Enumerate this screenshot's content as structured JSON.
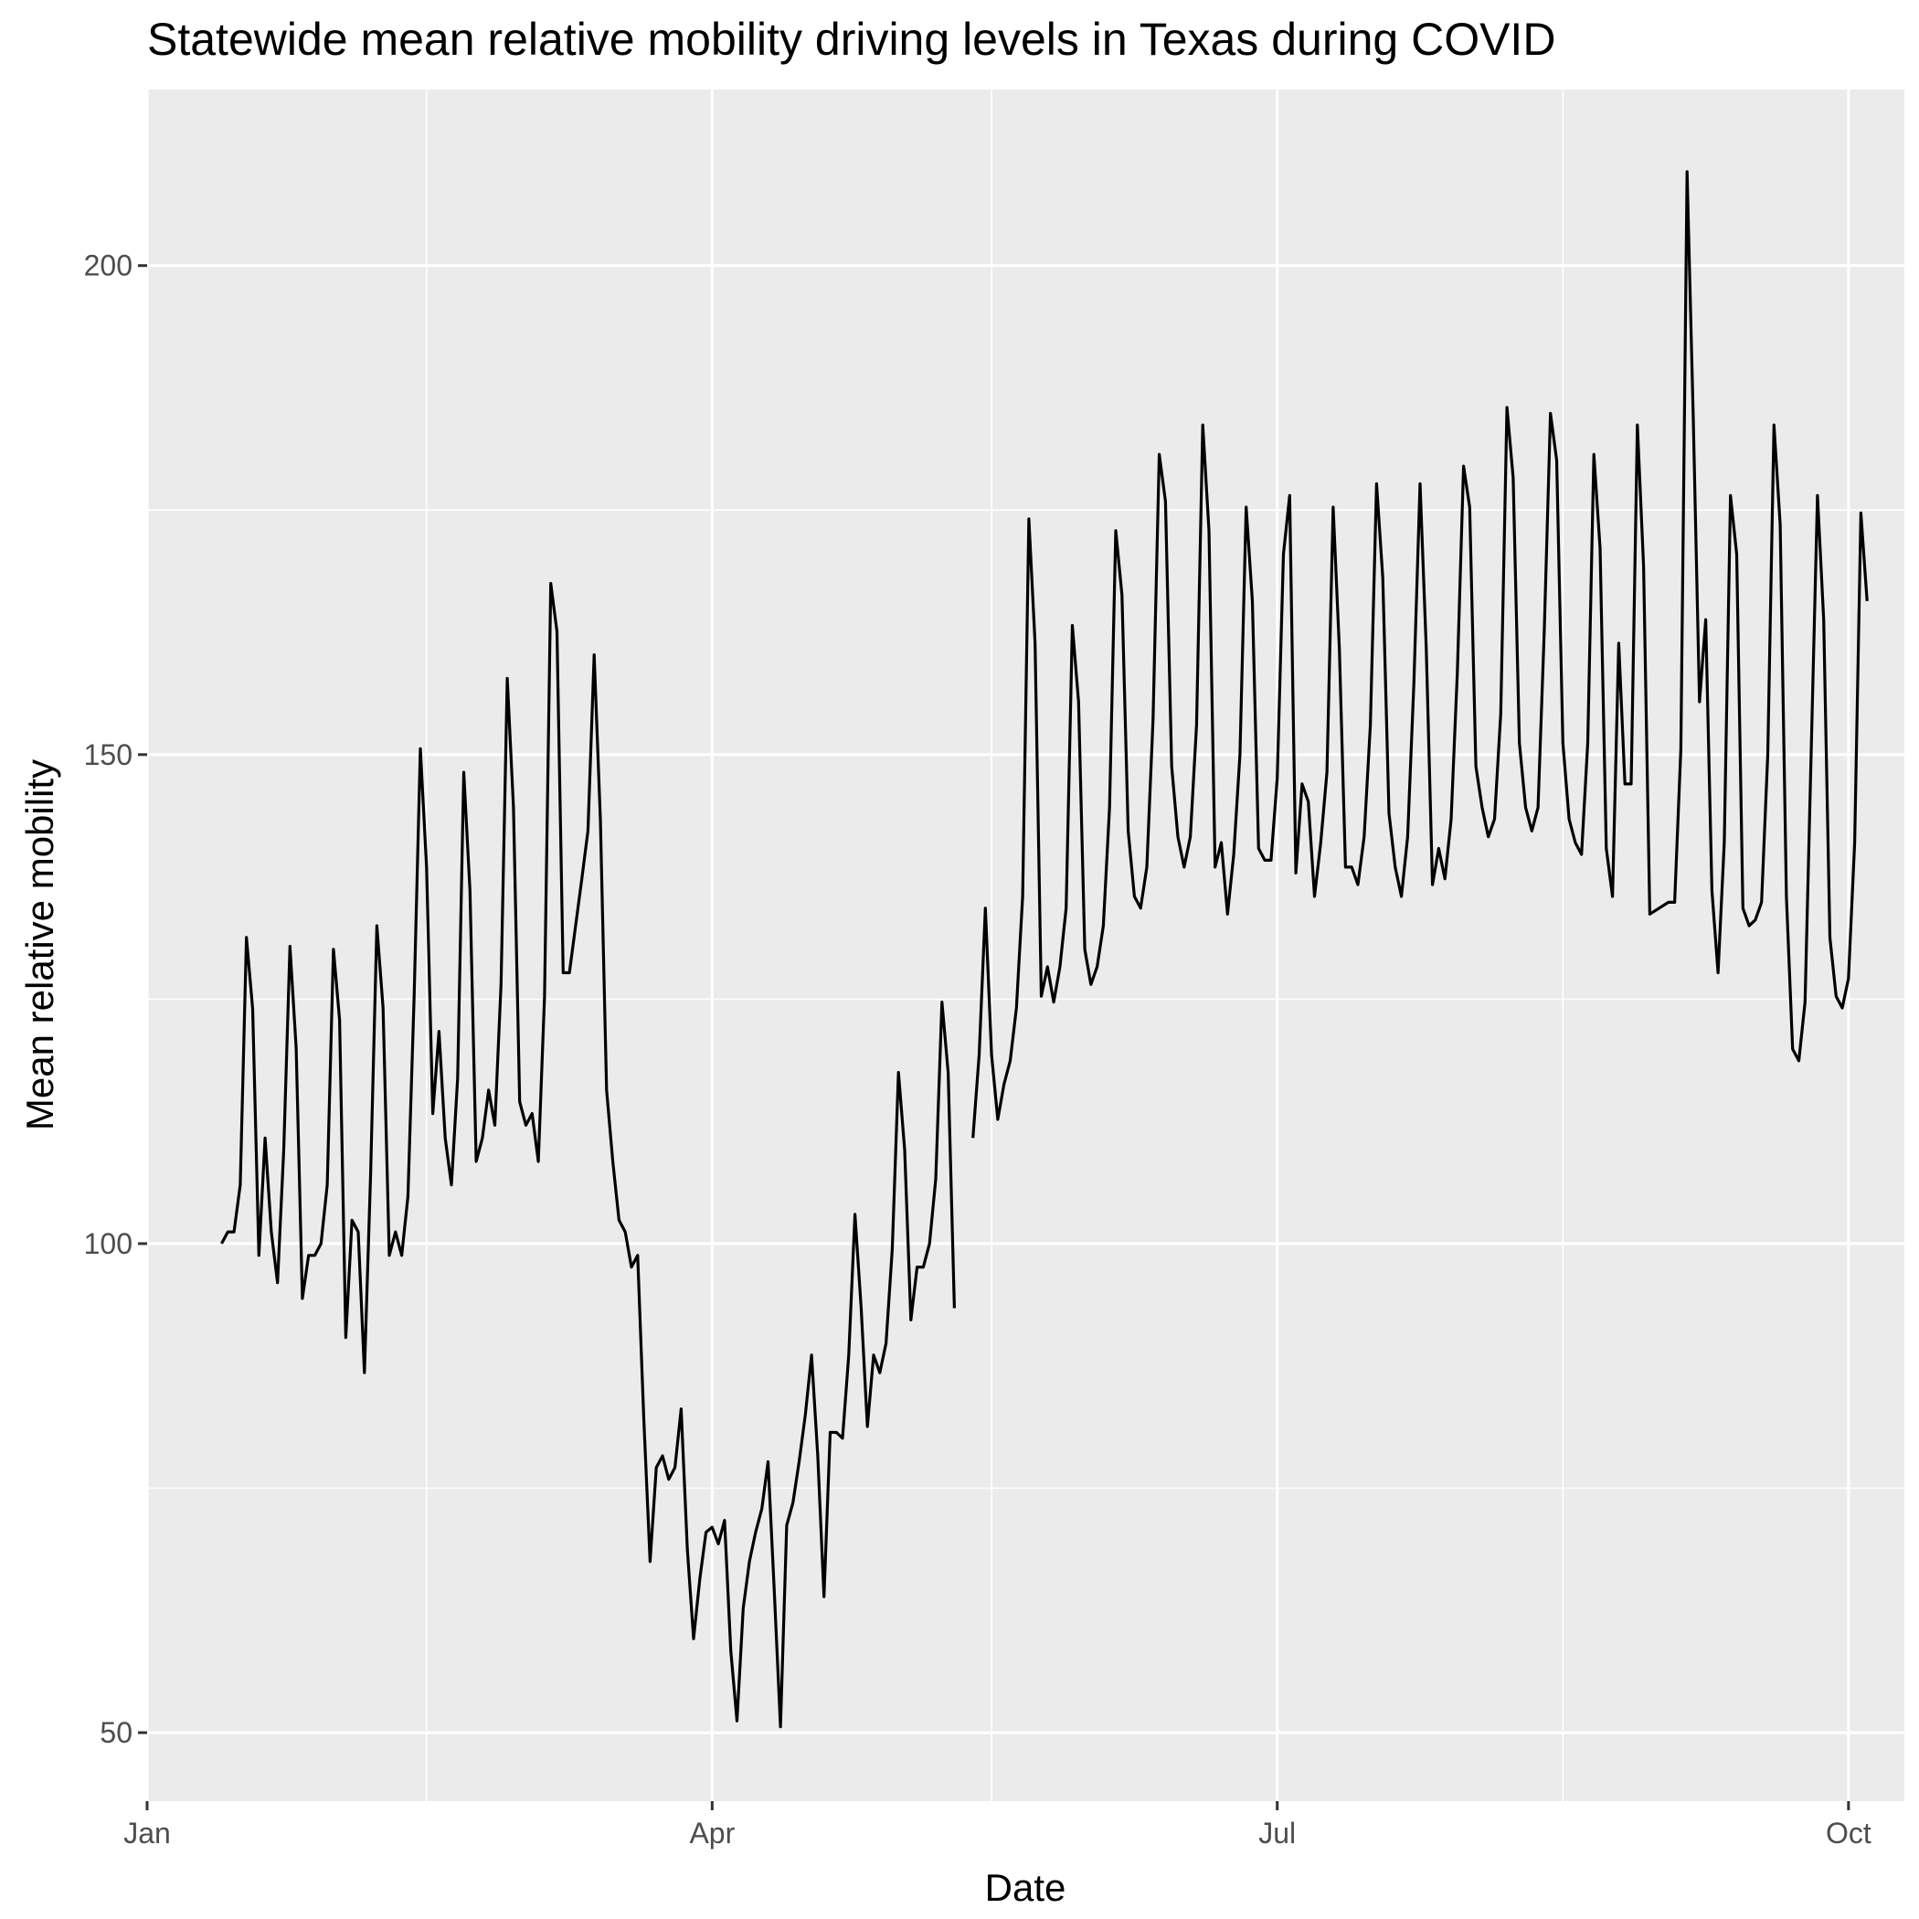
{
  "chart_data": {
    "type": "line",
    "title": "Statewide mean relative mobility driving levels in Texas during COVID",
    "xlabel": "Date",
    "ylabel": "Mean relative mobility",
    "x_axis": {
      "type": "date",
      "range": [
        "2020-01-01",
        "2020-10-10"
      ],
      "ticks": [
        {
          "value": "2020-01-01",
          "label": "Jan"
        },
        {
          "value": "2020-04-01",
          "label": "Apr"
        },
        {
          "value": "2020-07-01",
          "label": "Jul"
        },
        {
          "value": "2020-10-01",
          "label": "Oct"
        }
      ],
      "minor_ticks": [
        "2020-02-15",
        "2020-05-16",
        "2020-08-16"
      ]
    },
    "y_axis": {
      "range": [
        43,
        218
      ],
      "ticks": [
        50,
        100,
        150,
        200
      ],
      "minor_ticks": [
        75,
        125,
        175
      ]
    },
    "grid": true,
    "background": "#ebebeb",
    "line_color": "#000000",
    "series": [
      {
        "values": [
          [
            "2020-01-13",
            100
          ],
          [
            "2020-01-14",
            101.2
          ],
          [
            "2020-01-15",
            101.2
          ],
          [
            "2020-01-16",
            106
          ],
          [
            "2020-01-17",
            131.3
          ],
          [
            "2020-01-18",
            124
          ],
          [
            "2020-01-19",
            98.8
          ],
          [
            "2020-01-20",
            110.8
          ],
          [
            "2020-01-21",
            101.2
          ],
          [
            "2020-01-22",
            96
          ],
          [
            "2020-01-23",
            109.6
          ],
          [
            "2020-01-24",
            130.4
          ],
          [
            "2020-01-25",
            120
          ],
          [
            "2020-01-26",
            94.4
          ],
          [
            "2020-01-27",
            98.8
          ],
          [
            "2020-01-28",
            98.8
          ],
          [
            "2020-01-29",
            100
          ],
          [
            "2020-01-30",
            106
          ],
          [
            "2020-01-31",
            130.1
          ],
          [
            "2020-02-01",
            122.9
          ],
          [
            "2020-02-02",
            90.4
          ],
          [
            "2020-02-03",
            102.4
          ],
          [
            "2020-02-04",
            101.2
          ],
          [
            "2020-02-05",
            86.8
          ],
          [
            "2020-02-06",
            107.2
          ],
          [
            "2020-02-07",
            132.5
          ],
          [
            "2020-02-08",
            124.1
          ],
          [
            "2020-02-09",
            98.8
          ],
          [
            "2020-02-10",
            101.2
          ],
          [
            "2020-02-11",
            98.8
          ],
          [
            "2020-02-12",
            104.8
          ],
          [
            "2020-02-13",
            125.3
          ],
          [
            "2020-02-14",
            150.6
          ],
          [
            "2020-02-15",
            138.5
          ],
          [
            "2020-02-16",
            113.3
          ],
          [
            "2020-02-17",
            121.7
          ],
          [
            "2020-02-18",
            110.8
          ],
          [
            "2020-02-19",
            106
          ],
          [
            "2020-02-20",
            116.9
          ],
          [
            "2020-02-21",
            148.2
          ],
          [
            "2020-02-22",
            136.1
          ],
          [
            "2020-02-23",
            108.4
          ],
          [
            "2020-02-24",
            110.8
          ],
          [
            "2020-02-25",
            115.7
          ],
          [
            "2020-02-26",
            112.1
          ],
          [
            "2020-02-27",
            126.5
          ],
          [
            "2020-02-28",
            157.8
          ],
          [
            "2020-02-29",
            144.6
          ],
          [
            "2020-03-01",
            114.5
          ],
          [
            "2020-03-02",
            112.1
          ],
          [
            "2020-03-03",
            113.3
          ],
          [
            "2020-03-04",
            108.4
          ],
          [
            "2020-03-05",
            125.3
          ],
          [
            "2020-03-06",
            167.5
          ],
          [
            "2020-03-07",
            162.6
          ],
          [
            "2020-03-08",
            127.7
          ],
          [
            "2020-03-09",
            127.7
          ],
          [
            "2020-03-10",
            132.5
          ],
          [
            "2020-03-11",
            137.3
          ],
          [
            "2020-03-12",
            142.2
          ],
          [
            "2020-03-13",
            160.2
          ],
          [
            "2020-03-14",
            143.4
          ],
          [
            "2020-03-15",
            115.7
          ],
          [
            "2020-03-16",
            108.4
          ],
          [
            "2020-03-17",
            102.4
          ],
          [
            "2020-03-18",
            101.2
          ],
          [
            "2020-03-19",
            97.6
          ],
          [
            "2020-03-20",
            98.8
          ],
          [
            "2020-03-21",
            81.9
          ],
          [
            "2020-03-22",
            67.5
          ],
          [
            "2020-03-23",
            77.1
          ],
          [
            "2020-03-24",
            78.3
          ],
          [
            "2020-03-25",
            75.9
          ],
          [
            "2020-03-26",
            77.1
          ],
          [
            "2020-03-27",
            83.1
          ],
          [
            "2020-03-28",
            68.7
          ],
          [
            "2020-03-29",
            59.6
          ],
          [
            "2020-03-30",
            65.7
          ],
          [
            "2020-03-31",
            70.5
          ],
          [
            "2020-04-01",
            71
          ],
          [
            "2020-04-02",
            69.3
          ],
          [
            "2020-04-03",
            71.7
          ],
          [
            "2020-04-04",
            58.4
          ],
          [
            "2020-04-05",
            51.2
          ],
          [
            "2020-04-06",
            62.7
          ],
          [
            "2020-04-07",
            67.5
          ],
          [
            "2020-04-08",
            70.5
          ],
          [
            "2020-04-09",
            72.9
          ],
          [
            "2020-04-10",
            77.7
          ],
          [
            "2020-04-11",
            64.5
          ],
          [
            "2020-04-12",
            50.6
          ],
          [
            "2020-04-13",
            71.2
          ],
          [
            "2020-04-14",
            73.5
          ],
          [
            "2020-04-15",
            77.7
          ],
          [
            "2020-04-16",
            82.5
          ],
          [
            "2020-04-17",
            88.6
          ],
          [
            "2020-04-18",
            78.3
          ],
          [
            "2020-04-19",
            63.9
          ],
          [
            "2020-04-20",
            80.7
          ],
          [
            "2020-04-21",
            80.7
          ],
          [
            "2020-04-22",
            80.1
          ],
          [
            "2020-04-23",
            88.6
          ],
          [
            "2020-04-24",
            103
          ],
          [
            "2020-04-25",
            93.4
          ],
          [
            "2020-04-26",
            81.3
          ],
          [
            "2020-04-27",
            88.6
          ],
          [
            "2020-04-28",
            86.8
          ],
          [
            "2020-04-29",
            89.8
          ],
          [
            "2020-04-30",
            99.4
          ],
          [
            "2020-05-01",
            117.5
          ],
          [
            "2020-05-02",
            109.6
          ],
          [
            "2020-05-03",
            92.2
          ],
          [
            "2020-05-04",
            97.6
          ],
          [
            "2020-05-05",
            97.6
          ],
          [
            "2020-05-06",
            100
          ],
          [
            "2020-05-07",
            106.6
          ],
          [
            "2020-05-08",
            124.7
          ],
          [
            "2020-05-09",
            117.5
          ],
          [
            "2020-05-10",
            93.4
          ],
          null,
          [
            "2020-05-13",
            110.8
          ],
          [
            "2020-05-14",
            119.3
          ],
          [
            "2020-05-15",
            134.3
          ],
          [
            "2020-05-16",
            119.3
          ],
          [
            "2020-05-17",
            112.7
          ],
          [
            "2020-05-18",
            116.3
          ],
          [
            "2020-05-19",
            118.7
          ],
          [
            "2020-05-20",
            124.1
          ],
          [
            "2020-05-21",
            135.5
          ],
          [
            "2020-05-22",
            174.1
          ],
          [
            "2020-05-23",
            161.4
          ],
          [
            "2020-05-24",
            125.3
          ],
          [
            "2020-05-25",
            128.3
          ],
          [
            "2020-05-26",
            124.7
          ],
          [
            "2020-05-27",
            128.3
          ],
          [
            "2020-05-28",
            134.3
          ],
          [
            "2020-05-29",
            163.2
          ],
          [
            "2020-05-30",
            155.4
          ],
          [
            "2020-05-31",
            130.1
          ],
          [
            "2020-06-01",
            126.5
          ],
          [
            "2020-06-02",
            128.3
          ],
          [
            "2020-06-03",
            132.5
          ],
          [
            "2020-06-04",
            144.6
          ],
          [
            "2020-06-05",
            172.9
          ],
          [
            "2020-06-06",
            166.3
          ],
          [
            "2020-06-07",
            142.2
          ],
          [
            "2020-06-08",
            135.5
          ],
          [
            "2020-06-09",
            134.3
          ],
          [
            "2020-06-10",
            138.5
          ],
          [
            "2020-06-11",
            153.6
          ],
          [
            "2020-06-12",
            180.7
          ],
          [
            "2020-06-13",
            175.9
          ],
          [
            "2020-06-14",
            148.8
          ],
          [
            "2020-06-15",
            141.6
          ],
          [
            "2020-06-16",
            138.5
          ],
          [
            "2020-06-17",
            141.6
          ],
          [
            "2020-06-18",
            153
          ],
          [
            "2020-06-19",
            183.7
          ],
          [
            "2020-06-20",
            172.9
          ],
          [
            "2020-06-21",
            138.5
          ],
          [
            "2020-06-22",
            141
          ],
          [
            "2020-06-23",
            133.7
          ],
          [
            "2020-06-24",
            139.8
          ],
          [
            "2020-06-25",
            150
          ],
          [
            "2020-06-26",
            175.3
          ],
          [
            "2020-06-27",
            165.7
          ],
          [
            "2020-06-28",
            140.4
          ],
          [
            "2020-06-29",
            139.2
          ],
          [
            "2020-06-30",
            139.2
          ],
          [
            "2020-07-01",
            147.6
          ],
          [
            "2020-07-02",
            170.5
          ],
          [
            "2020-07-03",
            176.5
          ],
          [
            "2020-07-04",
            137.9
          ],
          [
            "2020-07-05",
            147
          ],
          [
            "2020-07-06",
            145.2
          ],
          [
            "2020-07-07",
            135.5
          ],
          [
            "2020-07-08",
            141
          ],
          [
            "2020-07-09",
            148.2
          ],
          [
            "2020-07-10",
            175.3
          ],
          [
            "2020-07-11",
            160.8
          ],
          [
            "2020-07-12",
            138.5
          ],
          [
            "2020-07-13",
            138.5
          ],
          [
            "2020-07-14",
            136.7
          ],
          [
            "2020-07-15",
            141.6
          ],
          [
            "2020-07-16",
            153
          ],
          [
            "2020-07-17",
            177.7
          ],
          [
            "2020-07-18",
            168.1
          ],
          [
            "2020-07-19",
            144
          ],
          [
            "2020-07-20",
            138.5
          ],
          [
            "2020-07-21",
            135.5
          ],
          [
            "2020-07-22",
            141.6
          ],
          [
            "2020-07-23",
            157.2
          ],
          [
            "2020-07-24",
            177.7
          ],
          [
            "2020-07-25",
            160.8
          ],
          [
            "2020-07-26",
            136.7
          ],
          [
            "2020-07-27",
            140.4
          ],
          [
            "2020-07-28",
            137.3
          ],
          [
            "2020-07-29",
            143.4
          ],
          [
            "2020-07-30",
            158.4
          ],
          [
            "2020-07-31",
            179.5
          ],
          [
            "2020-08-01",
            175.3
          ],
          [
            "2020-08-02",
            148.8
          ],
          [
            "2020-08-03",
            144.6
          ],
          [
            "2020-08-04",
            141.6
          ],
          [
            "2020-08-05",
            143.4
          ],
          [
            "2020-08-06",
            154.2
          ],
          [
            "2020-08-07",
            185.5
          ],
          [
            "2020-08-08",
            178.3
          ],
          [
            "2020-08-09",
            151.2
          ],
          [
            "2020-08-10",
            144.6
          ],
          [
            "2020-08-11",
            142.2
          ],
          [
            "2020-08-12",
            144.6
          ],
          [
            "2020-08-13",
            162.6
          ],
          [
            "2020-08-14",
            184.9
          ],
          [
            "2020-08-15",
            180.1
          ],
          [
            "2020-08-16",
            151.2
          ],
          [
            "2020-08-17",
            143.4
          ],
          [
            "2020-08-18",
            141
          ],
          [
            "2020-08-19",
            139.8
          ],
          [
            "2020-08-20",
            151.2
          ],
          [
            "2020-08-21",
            180.7
          ],
          [
            "2020-08-22",
            171.1
          ],
          [
            "2020-08-23",
            140.4
          ],
          [
            "2020-08-24",
            135.5
          ],
          [
            "2020-08-25",
            161.4
          ],
          [
            "2020-08-26",
            147
          ],
          [
            "2020-08-27",
            147
          ],
          [
            "2020-08-28",
            183.7
          ],
          [
            "2020-08-29",
            169.3
          ],
          [
            "2020-08-30",
            133.7
          ],
          [
            "2020-09-02",
            134.9
          ],
          [
            "2020-09-03",
            134.9
          ],
          [
            "2020-09-04",
            150.6
          ],
          [
            "2020-09-05",
            209.6
          ],
          [
            "2020-09-06",
            184.3
          ],
          [
            "2020-09-07",
            155.4
          ],
          [
            "2020-09-08",
            163.8
          ],
          [
            "2020-09-09",
            136.1
          ],
          [
            "2020-09-10",
            127.7
          ],
          [
            "2020-09-11",
            141
          ],
          [
            "2020-09-12",
            176.5
          ],
          [
            "2020-09-13",
            170.5
          ],
          [
            "2020-09-14",
            134.3
          ],
          [
            "2020-09-15",
            132.5
          ],
          [
            "2020-09-16",
            133.1
          ],
          [
            "2020-09-17",
            134.9
          ],
          [
            "2020-09-18",
            150
          ],
          [
            "2020-09-19",
            183.7
          ],
          [
            "2020-09-20",
            173.5
          ],
          [
            "2020-09-21",
            135.5
          ],
          [
            "2020-09-22",
            119.9
          ],
          [
            "2020-09-23",
            118.7
          ],
          [
            "2020-09-24",
            124.7
          ],
          [
            "2020-09-25",
            150.6
          ],
          [
            "2020-09-26",
            176.5
          ],
          [
            "2020-09-27",
            163.8
          ],
          [
            "2020-09-28",
            131.3
          ],
          [
            "2020-09-29",
            125.3
          ],
          [
            "2020-09-30",
            124.1
          ],
          [
            "2020-10-01",
            127.1
          ],
          [
            "2020-10-02",
            141
          ],
          [
            "2020-10-03",
            174.7
          ],
          [
            "2020-10-04",
            165.7
          ]
        ]
      }
    ]
  }
}
